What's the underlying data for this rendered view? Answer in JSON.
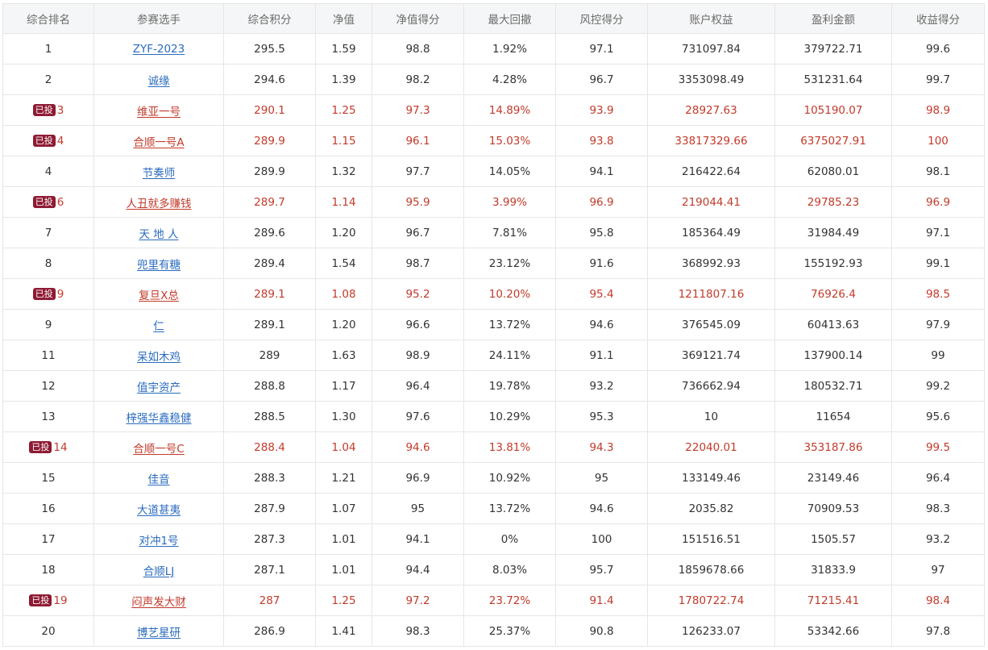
{
  "headers": [
    "综合排名",
    "参赛选手",
    "综合积分",
    "净值",
    "净值得分",
    "最大回撤",
    "风控得分",
    "账户权益",
    "盈利金额",
    "收益得分"
  ],
  "badge_label": "已投",
  "rows": [
    {
      "rank": "1",
      "name": "ZYF-2023",
      "score": "295.5",
      "nav": "1.59",
      "nav_score": "98.8",
      "drawdown": "1.92%",
      "risk_score": "97.1",
      "equity": "731097.84",
      "profit": "379722.71",
      "return_score": "99.6",
      "invested": false
    },
    {
      "rank": "2",
      "name": "诚缘",
      "score": "294.6",
      "nav": "1.39",
      "nav_score": "98.2",
      "drawdown": "4.28%",
      "risk_score": "96.7",
      "equity": "3353098.49",
      "profit": "531231.64",
      "return_score": "99.7",
      "invested": false
    },
    {
      "rank": "3",
      "name": "维亚一号",
      "score": "290.1",
      "nav": "1.25",
      "nav_score": "97.3",
      "drawdown": "14.89%",
      "risk_score": "93.9",
      "equity": "28927.63",
      "profit": "105190.07",
      "return_score": "98.9",
      "invested": true
    },
    {
      "rank": "4",
      "name": "合顺一号A",
      "score": "289.9",
      "nav": "1.15",
      "nav_score": "96.1",
      "drawdown": "15.03%",
      "risk_score": "93.8",
      "equity": "33817329.66",
      "profit": "6375027.91",
      "return_score": "100",
      "invested": true
    },
    {
      "rank": "4",
      "name": "节奏师",
      "score": "289.9",
      "nav": "1.32",
      "nav_score": "97.7",
      "drawdown": "14.05%",
      "risk_score": "94.1",
      "equity": "216422.64",
      "profit": "62080.01",
      "return_score": "98.1",
      "invested": false
    },
    {
      "rank": "6",
      "name": "人丑就多赚钱",
      "score": "289.7",
      "nav": "1.14",
      "nav_score": "95.9",
      "drawdown": "3.99%",
      "risk_score": "96.9",
      "equity": "219044.41",
      "profit": "29785.23",
      "return_score": "96.9",
      "invested": true
    },
    {
      "rank": "7",
      "name": "天 地 人",
      "score": "289.6",
      "nav": "1.20",
      "nav_score": "96.7",
      "drawdown": "7.81%",
      "risk_score": "95.8",
      "equity": "185364.49",
      "profit": "31984.49",
      "return_score": "97.1",
      "invested": false
    },
    {
      "rank": "8",
      "name": "兜里有糖",
      "score": "289.4",
      "nav": "1.54",
      "nav_score": "98.7",
      "drawdown": "23.12%",
      "risk_score": "91.6",
      "equity": "368992.93",
      "profit": "155192.93",
      "return_score": "99.1",
      "invested": false
    },
    {
      "rank": "9",
      "name": "复旦X总",
      "score": "289.1",
      "nav": "1.08",
      "nav_score": "95.2",
      "drawdown": "10.20%",
      "risk_score": "95.4",
      "equity": "1211807.16",
      "profit": "76926.4",
      "return_score": "98.5",
      "invested": true
    },
    {
      "rank": "9",
      "name": "仁",
      "score": "289.1",
      "nav": "1.20",
      "nav_score": "96.6",
      "drawdown": "13.72%",
      "risk_score": "94.6",
      "equity": "376545.09",
      "profit": "60413.63",
      "return_score": "97.9",
      "invested": false
    },
    {
      "rank": "11",
      "name": "呆如木鸡",
      "score": "289",
      "nav": "1.63",
      "nav_score": "98.9",
      "drawdown": "24.11%",
      "risk_score": "91.1",
      "equity": "369121.74",
      "profit": "137900.14",
      "return_score": "99",
      "invested": false
    },
    {
      "rank": "12",
      "name": "值宇资产",
      "score": "288.8",
      "nav": "1.17",
      "nav_score": "96.4",
      "drawdown": "19.78%",
      "risk_score": "93.2",
      "equity": "736662.94",
      "profit": "180532.71",
      "return_score": "99.2",
      "invested": false
    },
    {
      "rank": "13",
      "name": "梓强华鑫稳健",
      "score": "288.5",
      "nav": "1.30",
      "nav_score": "97.6",
      "drawdown": "10.29%",
      "risk_score": "95.3",
      "equity": "10",
      "profit": "11654",
      "return_score": "95.6",
      "invested": false
    },
    {
      "rank": "14",
      "name": "合顺一号C",
      "score": "288.4",
      "nav": "1.04",
      "nav_score": "94.6",
      "drawdown": "13.81%",
      "risk_score": "94.3",
      "equity": "22040.01",
      "profit": "353187.86",
      "return_score": "99.5",
      "invested": true
    },
    {
      "rank": "15",
      "name": "佳音",
      "score": "288.3",
      "nav": "1.21",
      "nav_score": "96.9",
      "drawdown": "10.92%",
      "risk_score": "95",
      "equity": "133149.46",
      "profit": "23149.46",
      "return_score": "96.4",
      "invested": false
    },
    {
      "rank": "16",
      "name": "大道甚夷",
      "score": "287.9",
      "nav": "1.07",
      "nav_score": "95",
      "drawdown": "13.72%",
      "risk_score": "94.6",
      "equity": "2035.82",
      "profit": "70909.53",
      "return_score": "98.3",
      "invested": false
    },
    {
      "rank": "17",
      "name": "对冲1号",
      "score": "287.3",
      "nav": "1.01",
      "nav_score": "94.1",
      "drawdown": "0%",
      "risk_score": "100",
      "equity": "151516.51",
      "profit": "1505.57",
      "return_score": "93.2",
      "invested": false
    },
    {
      "rank": "18",
      "name": "合顺LJ",
      "score": "287.1",
      "nav": "1.01",
      "nav_score": "94.4",
      "drawdown": "8.03%",
      "risk_score": "95.7",
      "equity": "1859678.66",
      "profit": "31833.9",
      "return_score": "97",
      "invested": false
    },
    {
      "rank": "19",
      "name": "闷声发大财",
      "score": "287",
      "nav": "1.25",
      "nav_score": "97.2",
      "drawdown": "23.72%",
      "risk_score": "91.4",
      "equity": "1780722.74",
      "profit": "71215.41",
      "return_score": "98.4",
      "invested": true
    },
    {
      "rank": "20",
      "name": "博艺星研",
      "score": "286.9",
      "nav": "1.41",
      "nav_score": "98.3",
      "drawdown": "25.37%",
      "risk_score": "90.8",
      "equity": "126233.07",
      "profit": "53342.66",
      "return_score": "97.8",
      "invested": false
    }
  ],
  "colors": {
    "link": "#2a6bbf",
    "highlight": "#c23a2a",
    "badge_bg": "#8e1a33",
    "header_bg": "#f5f6f7"
  }
}
